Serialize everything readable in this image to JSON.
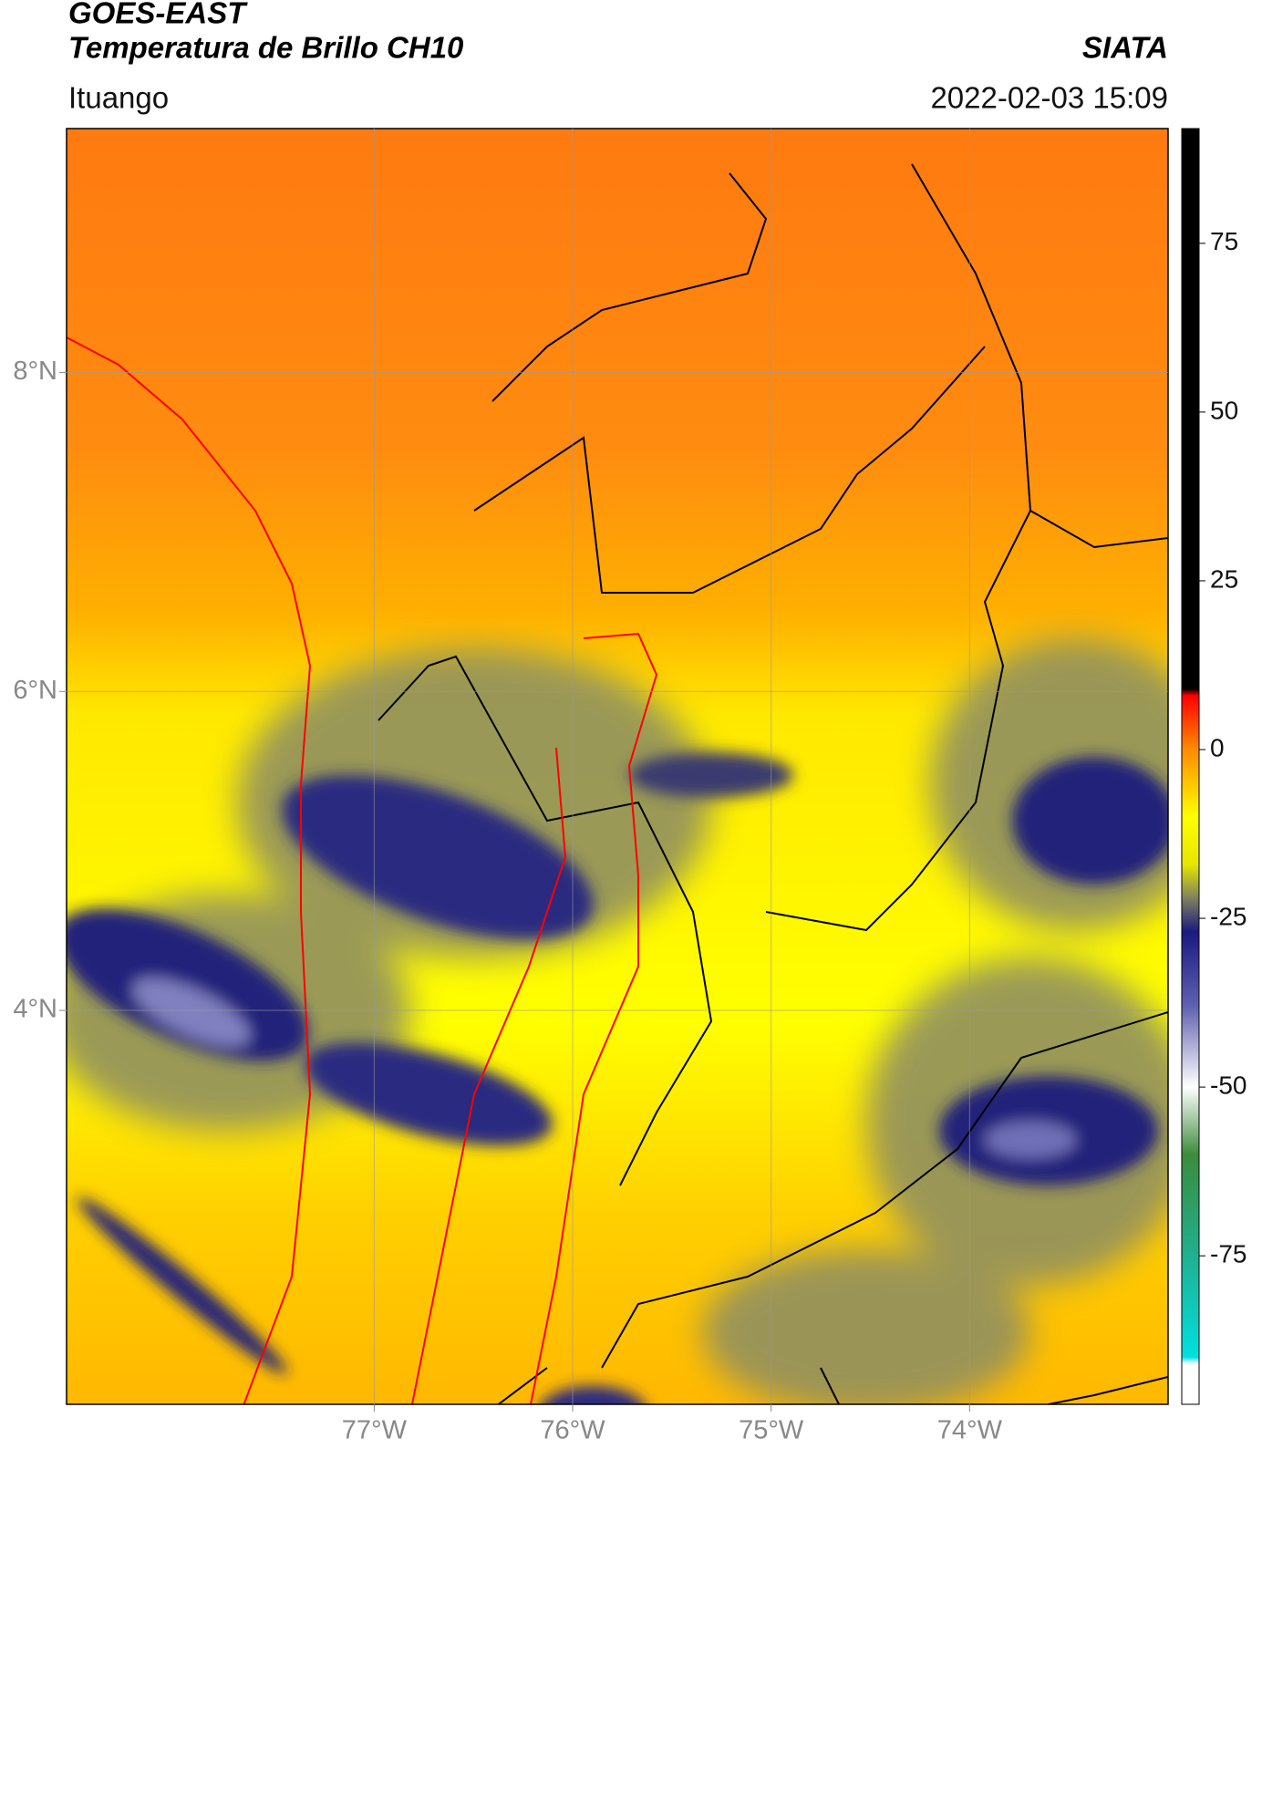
{
  "header": {
    "title": "GOES-EAST",
    "subtitle": "Temperatura de Brillo CH10",
    "source": "SIATA",
    "location": "Ituango",
    "timestamp": "2022-02-03 15:09"
  },
  "map": {
    "latlim": [
      1.53,
      9.53
    ],
    "lonlim": [
      -78.55,
      -73.0
    ],
    "latticks": [
      {
        "value": 8,
        "label": "8°N"
      },
      {
        "value": 6,
        "label": "6°N"
      },
      {
        "value": 4,
        "label": "4°N"
      }
    ],
    "lonticks": [
      {
        "value": -77,
        "label": "77°W"
      },
      {
        "value": -76,
        "label": "76°W"
      },
      {
        "value": -75,
        "label": "75°W"
      },
      {
        "value": -74,
        "label": "74°W"
      }
    ],
    "grid": true
  },
  "colorbar": {
    "lim": [
      -97,
      92
    ],
    "ticks": [
      75,
      50,
      25,
      0,
      -25,
      -50,
      -75
    ],
    "stops": [
      {
        "value": 92,
        "color": "#000000"
      },
      {
        "value": 9,
        "color": "#000000"
      },
      {
        "value": 8,
        "color": "#ff0000"
      },
      {
        "value": 0,
        "color": "#ff8c00"
      },
      {
        "value": -10,
        "color": "#ffff00"
      },
      {
        "value": -17,
        "color": "#e6e600"
      },
      {
        "value": -22,
        "color": "#808060"
      },
      {
        "value": -27,
        "color": "#1a1a80"
      },
      {
        "value": -38,
        "color": "#6060b0"
      },
      {
        "value": -50,
        "color": "#ffffff"
      },
      {
        "value": -60,
        "color": "#3c8c3c"
      },
      {
        "value": -75,
        "color": "#20b090"
      },
      {
        "value": -90,
        "color": "#00e0e0"
      },
      {
        "value": -91,
        "color": "#ffffff"
      },
      {
        "value": -97,
        "color": "#ffffff"
      }
    ]
  }
}
